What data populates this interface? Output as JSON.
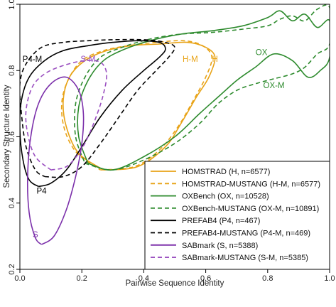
{
  "chart_data": {
    "type": "contour",
    "title": "",
    "xlabel": "Pairwise Sequence Identity",
    "ylabel": "Secondary Structure Identity",
    "xlim": [
      0,
      1
    ],
    "ylim": [
      0.2,
      1.0
    ],
    "xticks": [
      {
        "value": 0,
        "label": "0.0"
      },
      {
        "value": 0.2,
        "label": "0.2"
      },
      {
        "value": 0.4,
        "label": "0.4"
      },
      {
        "value": 0.6,
        "label": "0.6"
      },
      {
        "value": 0.8,
        "label": "0.8"
      },
      {
        "value": 1.0,
        "label": "1.0"
      }
    ],
    "yticks": [
      {
        "value": 0.2,
        "label": "0.2"
      },
      {
        "value": 0.4,
        "label": "0.4"
      },
      {
        "value": 0.6,
        "label": "0.6"
      },
      {
        "value": 0.8,
        "label": "0.8"
      },
      {
        "value": 1.0,
        "label": "1.0"
      }
    ],
    "legend_position": "bottom-right",
    "series": [
      {
        "name": "HOMSTRAD (H, n=6577)",
        "color": "#E8A317",
        "dash": "solid",
        "label": {
          "text": "H",
          "x": 0.63,
          "y": 0.835
        },
        "points": [
          [
            0.27,
            0.5
          ],
          [
            0.38,
            0.51
          ],
          [
            0.47,
            0.57
          ],
          [
            0.52,
            0.64
          ],
          [
            0.57,
            0.72
          ],
          [
            0.61,
            0.78
          ],
          [
            0.63,
            0.84
          ],
          [
            0.6,
            0.87
          ],
          [
            0.54,
            0.885
          ],
          [
            0.45,
            0.88
          ],
          [
            0.36,
            0.875
          ],
          [
            0.28,
            0.86
          ],
          [
            0.21,
            0.83
          ],
          [
            0.16,
            0.78
          ],
          [
            0.14,
            0.71
          ],
          [
            0.15,
            0.63
          ],
          [
            0.19,
            0.55
          ],
          [
            0.27,
            0.5
          ]
        ]
      },
      {
        "name": "HOMSTRAD-MUSTANG (H-M, n=6577)",
        "color": "#E8A317",
        "dash": "dashed",
        "label": {
          "text": "H-M",
          "x": 0.55,
          "y": 0.835
        },
        "points": [
          [
            0.26,
            0.5
          ],
          [
            0.37,
            0.51
          ],
          [
            0.45,
            0.56
          ],
          [
            0.51,
            0.63
          ],
          [
            0.56,
            0.71
          ],
          [
            0.6,
            0.78
          ],
          [
            0.62,
            0.84
          ],
          [
            0.59,
            0.875
          ],
          [
            0.53,
            0.89
          ],
          [
            0.44,
            0.885
          ],
          [
            0.35,
            0.875
          ],
          [
            0.27,
            0.86
          ],
          [
            0.2,
            0.83
          ],
          [
            0.155,
            0.77
          ],
          [
            0.135,
            0.7
          ],
          [
            0.145,
            0.62
          ],
          [
            0.185,
            0.55
          ],
          [
            0.26,
            0.5
          ]
        ]
      },
      {
        "name": "OXBench (OX, n=10528)",
        "color": "#2E8B2E",
        "dash": "solid",
        "label": {
          "text": "OX",
          "x": 0.78,
          "y": 0.855
        },
        "points": [
          [
            0.22,
            0.52
          ],
          [
            0.3,
            0.5
          ],
          [
            0.4,
            0.54
          ],
          [
            0.5,
            0.6
          ],
          [
            0.58,
            0.67
          ],
          [
            0.64,
            0.72
          ],
          [
            0.7,
            0.77
          ],
          [
            0.76,
            0.81
          ],
          [
            0.82,
            0.85
          ],
          [
            0.88,
            0.83
          ],
          [
            0.93,
            0.78
          ],
          [
            0.97,
            0.8
          ],
          [
            1.0,
            0.84
          ],
          [
            1.0,
            0.95
          ],
          [
            0.96,
            0.93
          ],
          [
            0.92,
            0.97
          ],
          [
            0.88,
            0.95
          ],
          [
            0.84,
            0.98
          ],
          [
            0.8,
            0.96
          ],
          [
            0.72,
            0.935
          ],
          [
            0.62,
            0.92
          ],
          [
            0.52,
            0.91
          ],
          [
            0.42,
            0.89
          ],
          [
            0.34,
            0.865
          ],
          [
            0.27,
            0.83
          ],
          [
            0.22,
            0.77
          ],
          [
            0.19,
            0.69
          ],
          [
            0.19,
            0.6
          ],
          [
            0.22,
            0.52
          ]
        ]
      },
      {
        "name": "OXBench-MUSTANG (OX-M, n=10891)",
        "color": "#2E8B2E",
        "dash": "dashed",
        "label": {
          "text": "OX-M",
          "x": 0.82,
          "y": 0.755
        },
        "points": [
          [
            0.21,
            0.52
          ],
          [
            0.3,
            0.5
          ],
          [
            0.4,
            0.53
          ],
          [
            0.5,
            0.58
          ],
          [
            0.58,
            0.64
          ],
          [
            0.64,
            0.7
          ],
          [
            0.7,
            0.74
          ],
          [
            0.76,
            0.76
          ],
          [
            0.82,
            0.775
          ],
          [
            0.88,
            0.79
          ],
          [
            0.92,
            0.81
          ],
          [
            0.96,
            0.85
          ],
          [
            1.0,
            0.88
          ],
          [
            1.0,
            0.99
          ],
          [
            0.96,
            0.985
          ],
          [
            0.92,
            0.95
          ],
          [
            0.88,
            0.965
          ],
          [
            0.84,
            0.955
          ],
          [
            0.8,
            0.935
          ],
          [
            0.72,
            0.925
          ],
          [
            0.62,
            0.915
          ],
          [
            0.52,
            0.91
          ],
          [
            0.42,
            0.895
          ],
          [
            0.33,
            0.87
          ],
          [
            0.26,
            0.84
          ],
          [
            0.21,
            0.78
          ],
          [
            0.18,
            0.7
          ],
          [
            0.18,
            0.6
          ],
          [
            0.21,
            0.52
          ]
        ]
      },
      {
        "name": "PREFAB4 (P4, n=467)",
        "color": "#000000",
        "dash": "solid",
        "label": {
          "text": "P4",
          "x": 0.07,
          "y": 0.437
        },
        "points": [
          [
            0.06,
            0.45
          ],
          [
            0.1,
            0.46
          ],
          [
            0.15,
            0.5
          ],
          [
            0.2,
            0.57
          ],
          [
            0.26,
            0.66
          ],
          [
            0.33,
            0.74
          ],
          [
            0.4,
            0.8
          ],
          [
            0.45,
            0.84
          ],
          [
            0.47,
            0.865
          ],
          [
            0.45,
            0.885
          ],
          [
            0.38,
            0.89
          ],
          [
            0.3,
            0.885
          ],
          [
            0.22,
            0.875
          ],
          [
            0.14,
            0.86
          ],
          [
            0.08,
            0.83
          ],
          [
            0.03,
            0.78
          ],
          [
            0.005,
            0.71
          ],
          [
            0.0,
            0.62
          ],
          [
            0.01,
            0.53
          ],
          [
            0.03,
            0.47
          ],
          [
            0.06,
            0.45
          ]
        ]
      },
      {
        "name": "PREFAB4-MUSTANG (P4-M, n=469)",
        "color": "#000000",
        "dash": "dashed",
        "label": {
          "text": "P4-M",
          "x": 0.04,
          "y": 0.835
        },
        "points": [
          [
            0.08,
            0.48
          ],
          [
            0.14,
            0.48
          ],
          [
            0.2,
            0.51
          ],
          [
            0.26,
            0.58
          ],
          [
            0.32,
            0.66
          ],
          [
            0.38,
            0.74
          ],
          [
            0.44,
            0.8
          ],
          [
            0.48,
            0.84
          ],
          [
            0.5,
            0.87
          ],
          [
            0.47,
            0.885
          ],
          [
            0.4,
            0.893
          ],
          [
            0.3,
            0.893
          ],
          [
            0.22,
            0.89
          ],
          [
            0.14,
            0.885
          ],
          [
            0.07,
            0.87
          ],
          [
            0.02,
            0.82
          ],
          [
            0.0,
            0.76
          ],
          [
            0.005,
            0.67
          ],
          [
            0.02,
            0.57
          ],
          [
            0.05,
            0.5
          ],
          [
            0.08,
            0.48
          ]
        ]
      },
      {
        "name": "SABmark (S, n=5388)",
        "color": "#7B2FAA",
        "dash": "solid",
        "label": {
          "text": "S",
          "x": 0.05,
          "y": 0.305
        },
        "points": [
          [
            0.07,
            0.275
          ],
          [
            0.11,
            0.3
          ],
          [
            0.15,
            0.38
          ],
          [
            0.18,
            0.48
          ],
          [
            0.2,
            0.58
          ],
          [
            0.205,
            0.67
          ],
          [
            0.19,
            0.74
          ],
          [
            0.15,
            0.78
          ],
          [
            0.1,
            0.76
          ],
          [
            0.06,
            0.7
          ],
          [
            0.035,
            0.6
          ],
          [
            0.025,
            0.48
          ],
          [
            0.03,
            0.37
          ],
          [
            0.05,
            0.295
          ],
          [
            0.07,
            0.275
          ]
        ]
      },
      {
        "name": "SABmark-MUSTANG (S-M, n=5385)",
        "color": "#9A4FC0",
        "dash": "dashed",
        "label": {
          "text": "S-M",
          "x": 0.22,
          "y": 0.835
        },
        "points": [
          [
            0.1,
            0.5
          ],
          [
            0.15,
            0.51
          ],
          [
            0.19,
            0.55
          ],
          [
            0.22,
            0.6
          ],
          [
            0.25,
            0.67
          ],
          [
            0.27,
            0.73
          ],
          [
            0.28,
            0.79
          ],
          [
            0.26,
            0.825
          ],
          [
            0.21,
            0.83
          ],
          [
            0.14,
            0.815
          ],
          [
            0.08,
            0.79
          ],
          [
            0.04,
            0.75
          ],
          [
            0.02,
            0.68
          ],
          [
            0.025,
            0.61
          ],
          [
            0.05,
            0.54
          ],
          [
            0.1,
            0.5
          ]
        ]
      }
    ]
  }
}
